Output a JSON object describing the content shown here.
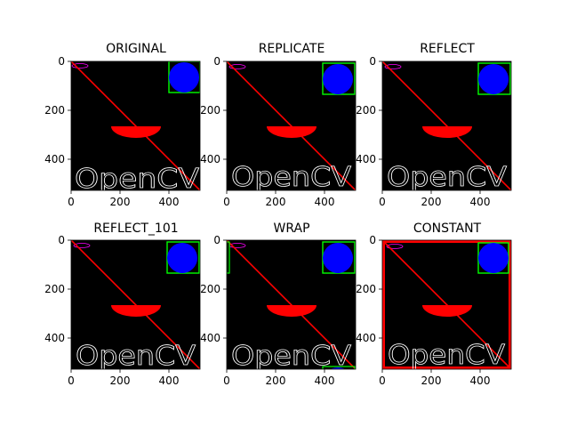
{
  "figure": {
    "subplots": [
      {
        "title": "ORIGINAL",
        "mode": "original",
        "x_ticks": [
          "0",
          "200",
          "400"
        ],
        "y_ticks": [
          "0",
          "200",
          "400"
        ]
      },
      {
        "title": "REPLICATE",
        "mode": "replicate",
        "x_ticks": [
          "0",
          "200",
          "400"
        ],
        "y_ticks": [
          "0",
          "200",
          "400"
        ]
      },
      {
        "title": "REFLECT",
        "mode": "reflect",
        "x_ticks": [
          "0",
          "200",
          "400"
        ],
        "y_ticks": [
          "0",
          "200",
          "400"
        ]
      },
      {
        "title": "REFLECT_101",
        "mode": "reflect_101",
        "x_ticks": [
          "0",
          "200",
          "400"
        ],
        "y_ticks": [
          "0",
          "200",
          "400"
        ]
      },
      {
        "title": "WRAP",
        "mode": "wrap",
        "x_ticks": [
          "0",
          "200",
          "400"
        ],
        "y_ticks": [
          "0",
          "200",
          "400"
        ]
      },
      {
        "title": "CONSTANT",
        "mode": "constant",
        "x_ticks": [
          "0",
          "200",
          "400"
        ],
        "y_ticks": [
          "0",
          "200",
          "400"
        ]
      }
    ],
    "image_text": "OpenCV",
    "colors": {
      "background": "#000000",
      "diagonal_line": "#ff0000",
      "half_ellipse": "#ff0000",
      "circle": "#0000ff",
      "rectangle": "#00ff00",
      "text": "#ffffff",
      "constant_border": "#ff0000",
      "small_ellipse": "#ff00ff"
    }
  }
}
